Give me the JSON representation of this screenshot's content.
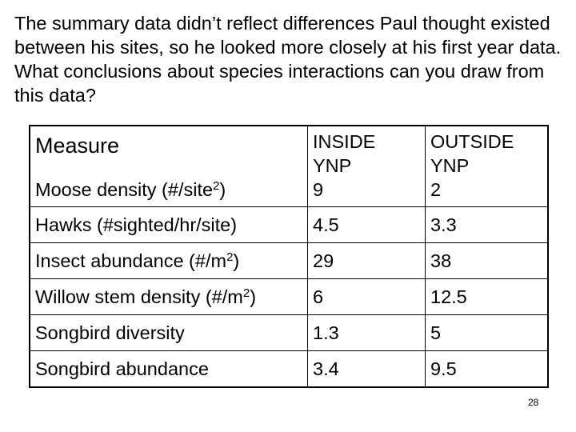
{
  "question": "The summary data didn’t reflect differences Paul thought existed between his sites, so he looked more closely at his first year data. What conclusions about species interactions can you draw from this data?",
  "table": {
    "header": {
      "measure": "Measure",
      "inside": "INSIDE YNP",
      "outside": "OUTSIDE YNP"
    },
    "rows": [
      {
        "label": "Moose density (#/site",
        "sup": "2",
        "label_suffix": ")",
        "inside": "9",
        "outside": "2"
      },
      {
        "label": "Hawks (#sighted/hr/site)",
        "sup": "",
        "label_suffix": "",
        "inside": "4.5",
        "outside": "3.3"
      },
      {
        "label": "Insect abundance (#/m",
        "sup": "2",
        "label_suffix": ")",
        "inside": "29",
        "outside": "38"
      },
      {
        "label": "Willow stem density (#/m",
        "sup": "2",
        "label_suffix": ")",
        "inside": "6",
        "outside": "12.5"
      },
      {
        "label": "Songbird diversity",
        "sup": "",
        "label_suffix": "",
        "inside": "1.3",
        "outside": "5"
      },
      {
        "label": "Songbird abundance",
        "sup": "",
        "label_suffix": "",
        "inside": "3.4",
        "outside": "9.5"
      }
    ]
  },
  "page_number": "28"
}
